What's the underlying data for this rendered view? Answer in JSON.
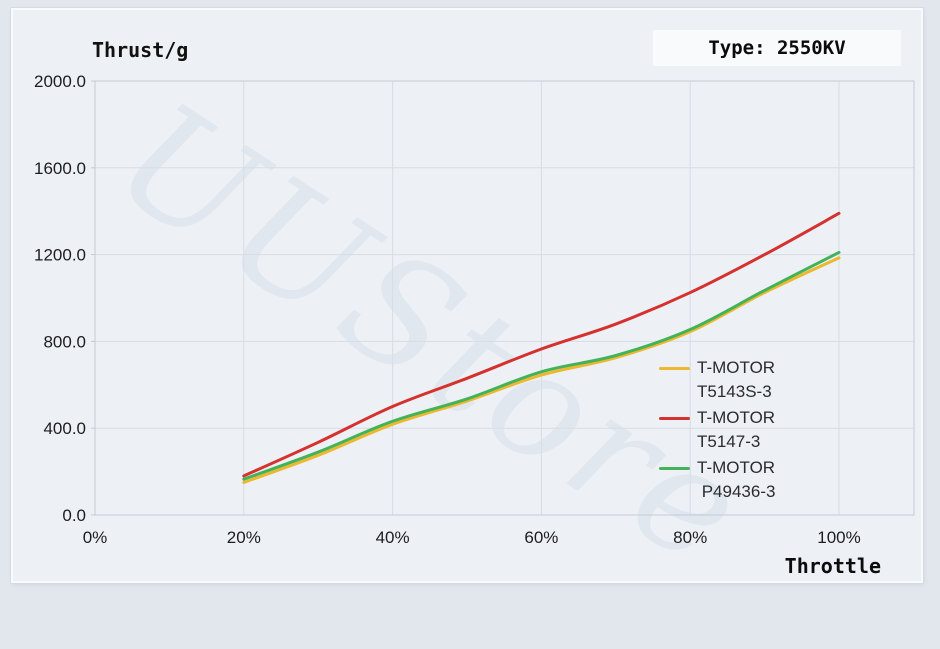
{
  "header": {
    "title": "Thrust/g",
    "type_label": "Type: 2550KV"
  },
  "watermark": "UUStore",
  "colors": {
    "page_background": "#e2e7ee",
    "panel_background": "#edf1f5",
    "gridline": "#d7dde4",
    "frame": "#c3cad3",
    "tick_text": "#1c1d1f"
  },
  "chart_data": {
    "type": "line",
    "title": "Thrust/g",
    "xlabel": "Throttle",
    "ylabel": "Thrust/g",
    "xlim": [
      0,
      100
    ],
    "ylim": [
      0,
      2000
    ],
    "grid": true,
    "legend_position": "middle-right",
    "x_ticks": [
      0,
      20,
      40,
      60,
      80,
      100
    ],
    "x_tick_labels": [
      "0%",
      "20%",
      "40%",
      "60%",
      "80%",
      "100%"
    ],
    "y_ticks": [
      0,
      400,
      800,
      1200,
      1600,
      2000
    ],
    "y_tick_labels": [
      "0.0",
      "400.0",
      "800.0",
      "1200.0",
      "1600.0",
      "2000.0"
    ],
    "x": [
      20,
      30,
      40,
      50,
      60,
      70,
      80,
      90,
      100
    ],
    "series": [
      {
        "name": "T-MOTOR T5143S-3",
        "label_lines": [
          "T-MOTOR",
          "T5143S-3"
        ],
        "color": "#edb82f",
        "values": [
          150,
          275,
          418,
          525,
          645,
          725,
          845,
          1025,
          1185
        ]
      },
      {
        "name": "T-MOTOR T5147-3",
        "label_lines": [
          "T-MOTOR",
          "T5147-3"
        ],
        "color": "#d5312e",
        "values": [
          180,
          335,
          500,
          630,
          765,
          880,
          1025,
          1200,
          1390
        ]
      },
      {
        "name": "T-MOTOR P49436-3",
        "label_lines": [
          "T-MOTOR",
          " P49436-3"
        ],
        "color": "#43b35a",
        "values": [
          165,
          290,
          432,
          535,
          660,
          735,
          855,
          1035,
          1210
        ]
      }
    ]
  }
}
